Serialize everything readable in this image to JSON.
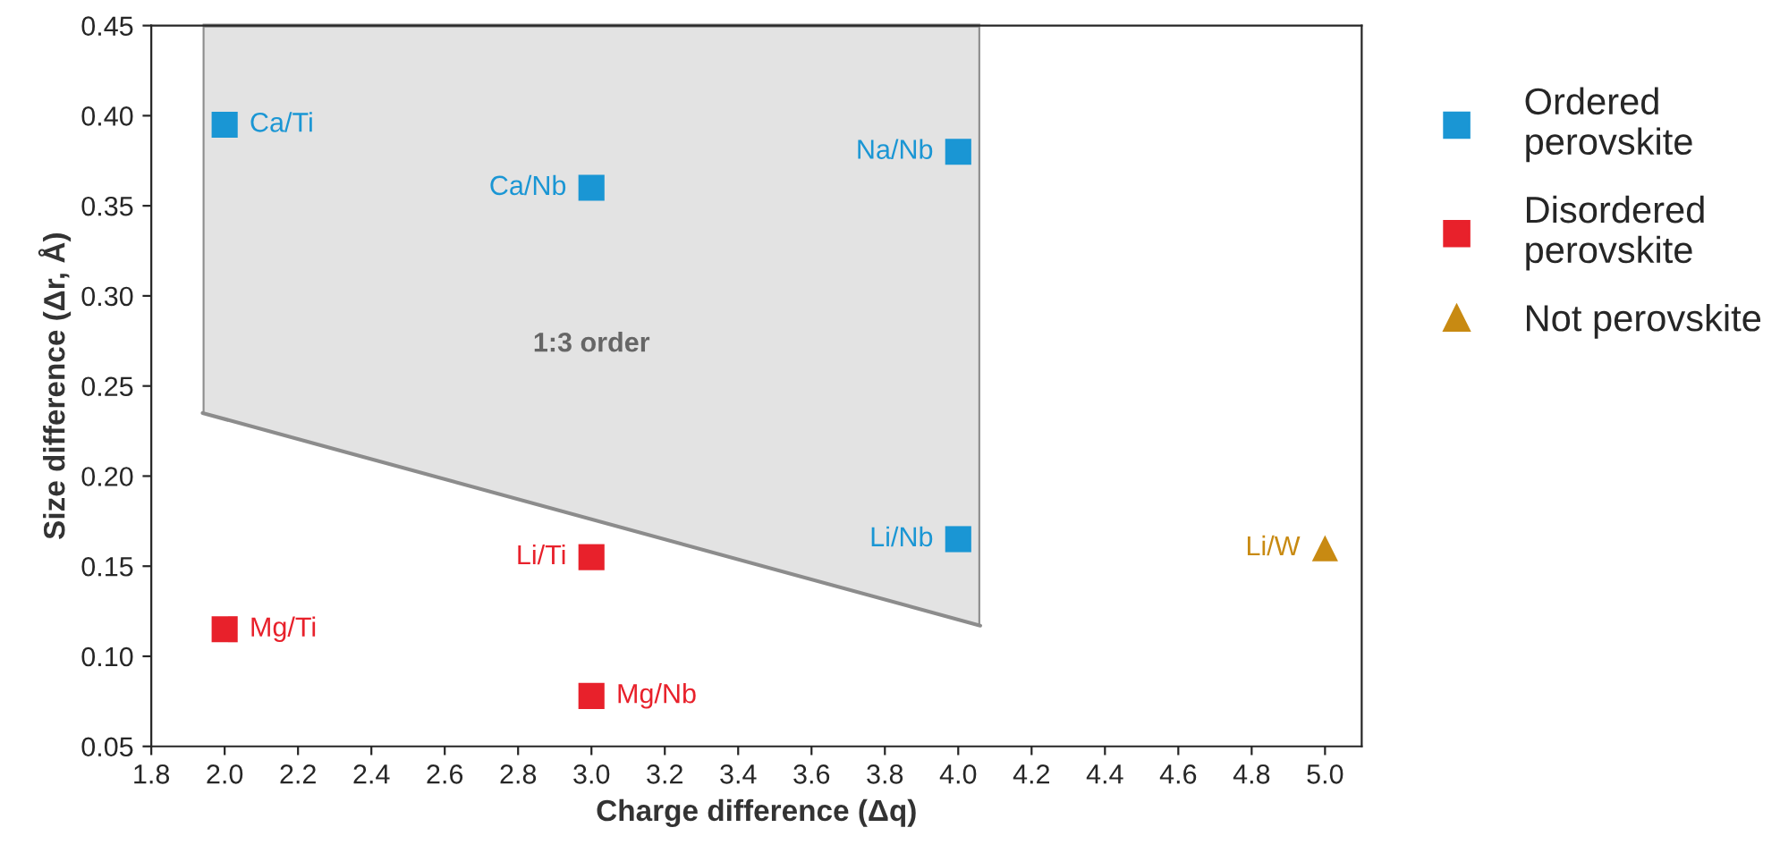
{
  "chart_data": {
    "type": "scatter",
    "xlabel": "Charge difference (Δq)",
    "ylabel": "Size difference (Δr, Å)",
    "xlim": [
      1.8,
      5.1
    ],
    "ylim": [
      0.05,
      0.45
    ],
    "xticks": [
      1.8,
      {
        "value": 2,
        "label": "2.0"
      },
      2.2,
      2.4,
      2.6,
      2.8,
      {
        "value": 3,
        "label": "3.0"
      },
      3.2,
      3.4,
      3.6,
      3.8,
      {
        "value": 4,
        "label": "4.0"
      },
      4.2,
      4.4,
      4.6,
      4.8,
      {
        "value": 5,
        "label": "5.0"
      }
    ],
    "yticks": [
      0.05,
      {
        "value": 0.1,
        "label": "0.10"
      },
      0.15,
      {
        "value": 0.2,
        "label": "0.20"
      },
      0.25,
      {
        "value": 0.3,
        "label": "0.30"
      },
      0.35,
      {
        "value": 0.4,
        "label": "0.40"
      },
      0.45
    ],
    "grid": false,
    "bands": [
      {
        "axis": "x",
        "from": 1.94,
        "to": 4.06,
        "color": "#e3e3e3"
      }
    ],
    "legend": "right",
    "series": [
      {
        "type": "line",
        "color": "#8c8c8c",
        "x": [
          1.94,
          4.06
        ],
        "values": [
          0.235,
          0.117
        ]
      },
      {
        "name": "Ordered\nperovskite",
        "color": "#1a96d4",
        "marker": "square",
        "x": [
          2.0,
          3.0,
          4.0,
          4.0
        ],
        "values": [
          0.395,
          0.36,
          0.38,
          0.165
        ]
      },
      {
        "name": "Disordered\nperovskite",
        "color": "#e8212b",
        "marker": "square",
        "x": [
          3.0,
          2.0,
          3.0
        ],
        "values": [
          0.155,
          0.115,
          0.078
        ]
      },
      {
        "name": "Not perovskite",
        "color": "#c88a12",
        "marker": "triangle",
        "x": [
          5.0
        ],
        "values": [
          0.16
        ]
      }
    ],
    "annotations": [
      {
        "text": "Ca/Ti",
        "x": 2.0,
        "y": 0.395
      },
      {
        "text": "Ca/Nb",
        "x": 3.0,
        "y": 0.36
      },
      {
        "text": "Na/Nb",
        "x": 4.0,
        "y": 0.38
      },
      {
        "text": "Li/Nb",
        "x": 4.0,
        "y": 0.165
      },
      {
        "text": "Li/Ti",
        "x": 3.0,
        "y": 0.155
      },
      {
        "text": "Mg/Ti",
        "x": 2.0,
        "y": 0.115
      },
      {
        "text": "Mg/Nb",
        "x": 3.0,
        "y": 0.078
      },
      {
        "text": "Li/W",
        "x": 5.0,
        "y": 0.16
      },
      "1:3 order"
    ]
  }
}
